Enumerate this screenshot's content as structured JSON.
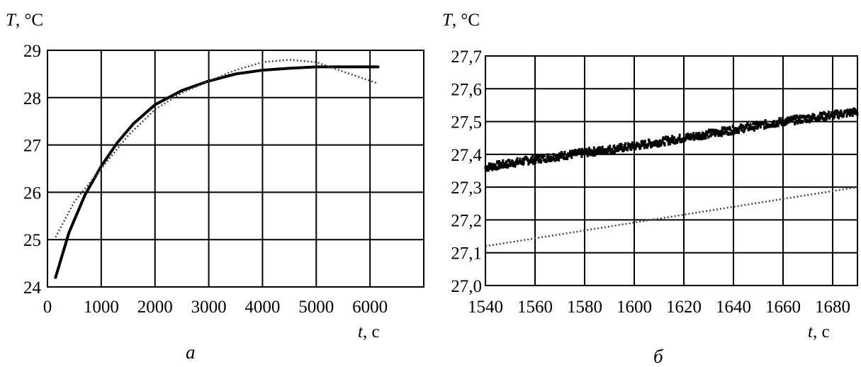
{
  "chart_data": [
    {
      "type": "line",
      "panel_label": "а",
      "ylabel_var": "T",
      "ylabel_unit": ", °C",
      "xlabel_var": "t",
      "xlabel_unit": ", с",
      "xlim": [
        0,
        7000
      ],
      "ylim": [
        24,
        29
      ],
      "xticks": [
        0,
        1000,
        2000,
        3000,
        4000,
        5000,
        6000
      ],
      "xtick_labels": [
        "0",
        "1000",
        "2000",
        "3000",
        "4000",
        "5000",
        "6000"
      ],
      "yticks": [
        24,
        25,
        26,
        27,
        28,
        29
      ],
      "ytick_labels": [
        "24",
        "25",
        "26",
        "27",
        "28",
        "29"
      ],
      "grid": true,
      "series": [
        {
          "style": "solid",
          "color": "#000000",
          "x": [
            150,
            400,
            700,
            1000,
            1300,
            1600,
            2000,
            2500,
            3000,
            3500,
            4000,
            4500,
            5000,
            5500,
            6150
          ],
          "y": [
            24.2,
            25.15,
            25.95,
            26.55,
            27.05,
            27.45,
            27.85,
            28.15,
            28.35,
            28.5,
            28.58,
            28.62,
            28.65,
            28.65,
            28.65
          ]
        },
        {
          "style": "dotted",
          "color": "#444444",
          "x": [
            150,
            500,
            1000,
            1500,
            2000,
            2500,
            3000,
            3500,
            4000,
            4500,
            5000,
            5500,
            6150
          ],
          "y": [
            25.05,
            25.8,
            26.5,
            27.2,
            27.75,
            28.1,
            28.35,
            28.58,
            28.75,
            28.8,
            28.75,
            28.55,
            28.3
          ]
        }
      ]
    },
    {
      "type": "line",
      "panel_label": "б",
      "ylabel_var": "T",
      "ylabel_unit": ", °C",
      "xlabel_var": "t",
      "xlabel_unit": ", с",
      "xlim": [
        1540,
        1690
      ],
      "ylim": [
        27.0,
        27.7
      ],
      "xticks": [
        1540,
        1560,
        1580,
        1600,
        1620,
        1640,
        1660,
        1680
      ],
      "xtick_labels": [
        "1540",
        "1560",
        "1580",
        "1600",
        "1620",
        "1640",
        "1660",
        "1680"
      ],
      "yticks": [
        27.0,
        27.1,
        27.2,
        27.3,
        27.4,
        27.5,
        27.6,
        27.7
      ],
      "ytick_labels": [
        "27,0",
        "27,1",
        "27,2",
        "27,3",
        "27,4",
        "27,5",
        "27,6",
        "27,7"
      ],
      "grid": true,
      "series": [
        {
          "style": "noisy",
          "color": "#000000",
          "x": [
            1540,
            1560,
            1580,
            1600,
            1620,
            1640,
            1660,
            1680,
            1690
          ],
          "y": [
            27.36,
            27.385,
            27.405,
            27.425,
            27.45,
            27.475,
            27.5,
            27.52,
            27.53
          ]
        },
        {
          "style": "dotted",
          "color": "#444444",
          "x": [
            1540,
            1690
          ],
          "y": [
            27.12,
            27.3
          ]
        }
      ]
    }
  ]
}
